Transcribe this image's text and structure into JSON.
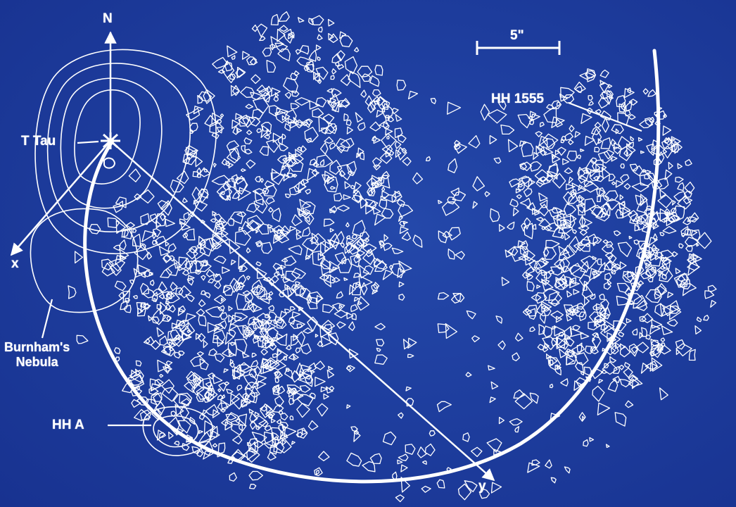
{
  "figure": {
    "labels": {
      "north": "N",
      "x_axis": "x",
      "y_axis": "y",
      "t_tau": "T Tau",
      "hh1555": "HH 1555",
      "hh_a": "HH A",
      "burnham_line1": "Burnham's",
      "burnham_line2": "Nebula",
      "scale_bar": "5\""
    },
    "colors": {
      "background": "#1d3c9c",
      "contour": "#ffffff"
    }
  }
}
